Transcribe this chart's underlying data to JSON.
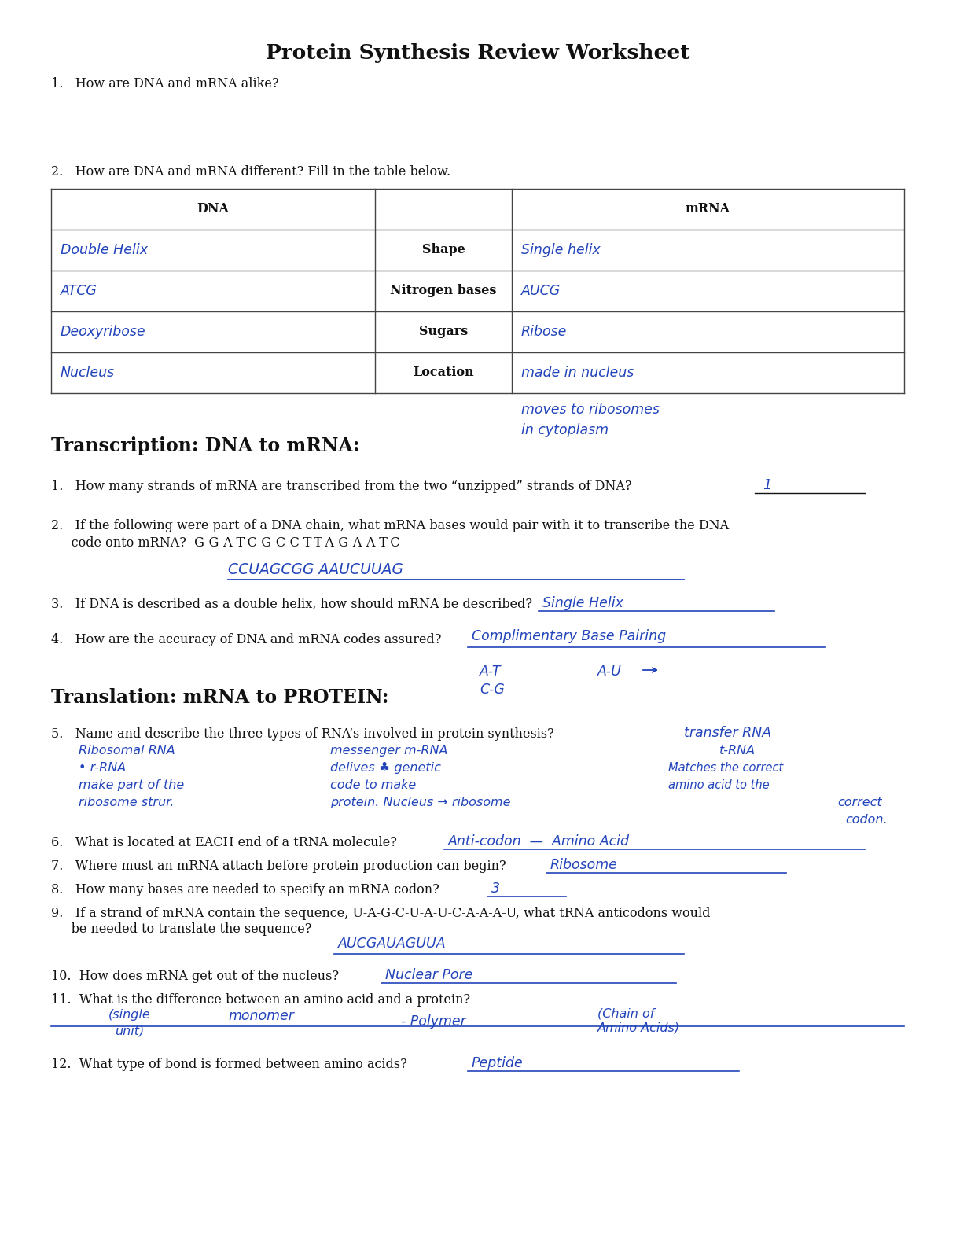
{
  "title": "Protein Synthesis Review Worksheet",
  "bg_color": "#ffffff",
  "text_color": "#111111",
  "handwriting_color": "#2244bb",
  "section1_q1": "1.   How are DNA and mRNA alike?",
  "section1_q2": "2.   How are DNA and mRNA different? Fill in the table below.",
  "table_dna_header": "DNA",
  "table_mrna_header": "mRNA",
  "middle_labels": [
    "Shape",
    "Nitrogen bases",
    "Sugars",
    "Location"
  ],
  "dna_answers": [
    "Double Helix",
    "ATCG",
    "Deoxyribose",
    "Nucleus"
  ],
  "mrna_answers": [
    "Single helix",
    "AUCG",
    "Ribose",
    "made in nucleus"
  ],
  "table_extra_note": "moves to ribosomes\nin cytoplasm",
  "section2_title": "Transcription: DNA to mRNA:",
  "section2_q1": "1.   How many strands of mRNA are transcribed from the two “unzipped” strands of DNA?",
  "section2_q1_ans": "1",
  "section2_q2a": "2.   If the following were part of a DNA chain, what mRNA bases would pair with it to transcribe the DNA",
  "section2_q2b": "     code onto mRNA?  G-G-A-T-C-G-C-C-T-T-A-G-A-A-T-C",
  "section2_q2_ans": "CCUAGCGG AAUCUUAG",
  "section2_q3": "3.   If DNA is described as a double helix, how should mRNA be described?",
  "section2_q3_ans": "Single Helix",
  "section2_q4": "4.   How are the accuracy of DNA and mRNA codes assured?",
  "section2_q4_ans": "Complimentary Base Pairing",
  "section2_q4_note1": "A-T",
  "section2_q4_note2": "A-U",
  "section2_q4_note3": "C-G",
  "section3_title": "Translation: mRNA to PROTEIN:",
  "section3_q5": "5.   Name and describe the three types of RNA’s involved in protein synthesis?",
  "section3_q5_right": "transfer RNA",
  "section3_q5_c1l1": "Ribosomal RNA",
  "section3_q5_c1l2": "• r-RNA",
  "section3_q5_c1l3": "make part of the",
  "section3_q5_c1l4": "ribosome strur.",
  "section3_q5_c2l1": "messenger m-RNA",
  "section3_q5_c2l2": "delives ♣ genetic",
  "section3_q5_c2l3": "code to make",
  "section3_q5_c2l4": "protein. Nucleus → ribosome",
  "section3_q5_c3l1": "t-RNA",
  "section3_q5_c3l2": "Matches the correct",
  "section3_q5_c3l3": "amino acid to the",
  "section3_q5_c3l4": "correct",
  "section3_q5_c3l5": "codon.",
  "section3_q6": "6.   What is located at EACH end of a tRNA molecule?",
  "section3_q6_ans": "Anti-codon  —  Amino Acid",
  "section3_q7": "7.   Where must an mRNA attach before protein production can begin?",
  "section3_q7_ans": "Ribosome",
  "section3_q8": "8.   How many bases are needed to specify an mRNA codon?",
  "section3_q8_ans": "3",
  "section3_q9a": "9.   If a strand of mRNA contain the sequence, U-A-G-C-U-A-U-C-A-A-A-U, what tRNA anticodons would",
  "section3_q9b": "     be needed to translate the sequence?",
  "section3_q9_ans": "AUCGAUAGUUA",
  "section3_q10": "10.  How does mRNA get out of the nucleus?",
  "section3_q10_ans": "Nuclear Pore",
  "section3_q11": "11.  What is the difference between an amino acid and a protein?",
  "section3_q11_ans1": "(single",
  "section3_q11_ans2": "unit)",
  "section3_q11_ans3": "monomer",
  "section3_q11_ans4": "- Polymer",
  "section3_q11_ans5": "(Chain of",
  "section3_q11_ans6": "Amino Acids)",
  "section3_q12": "12.  What type of bond is formed between amino acids?",
  "section3_q12_ans": "Peptide"
}
